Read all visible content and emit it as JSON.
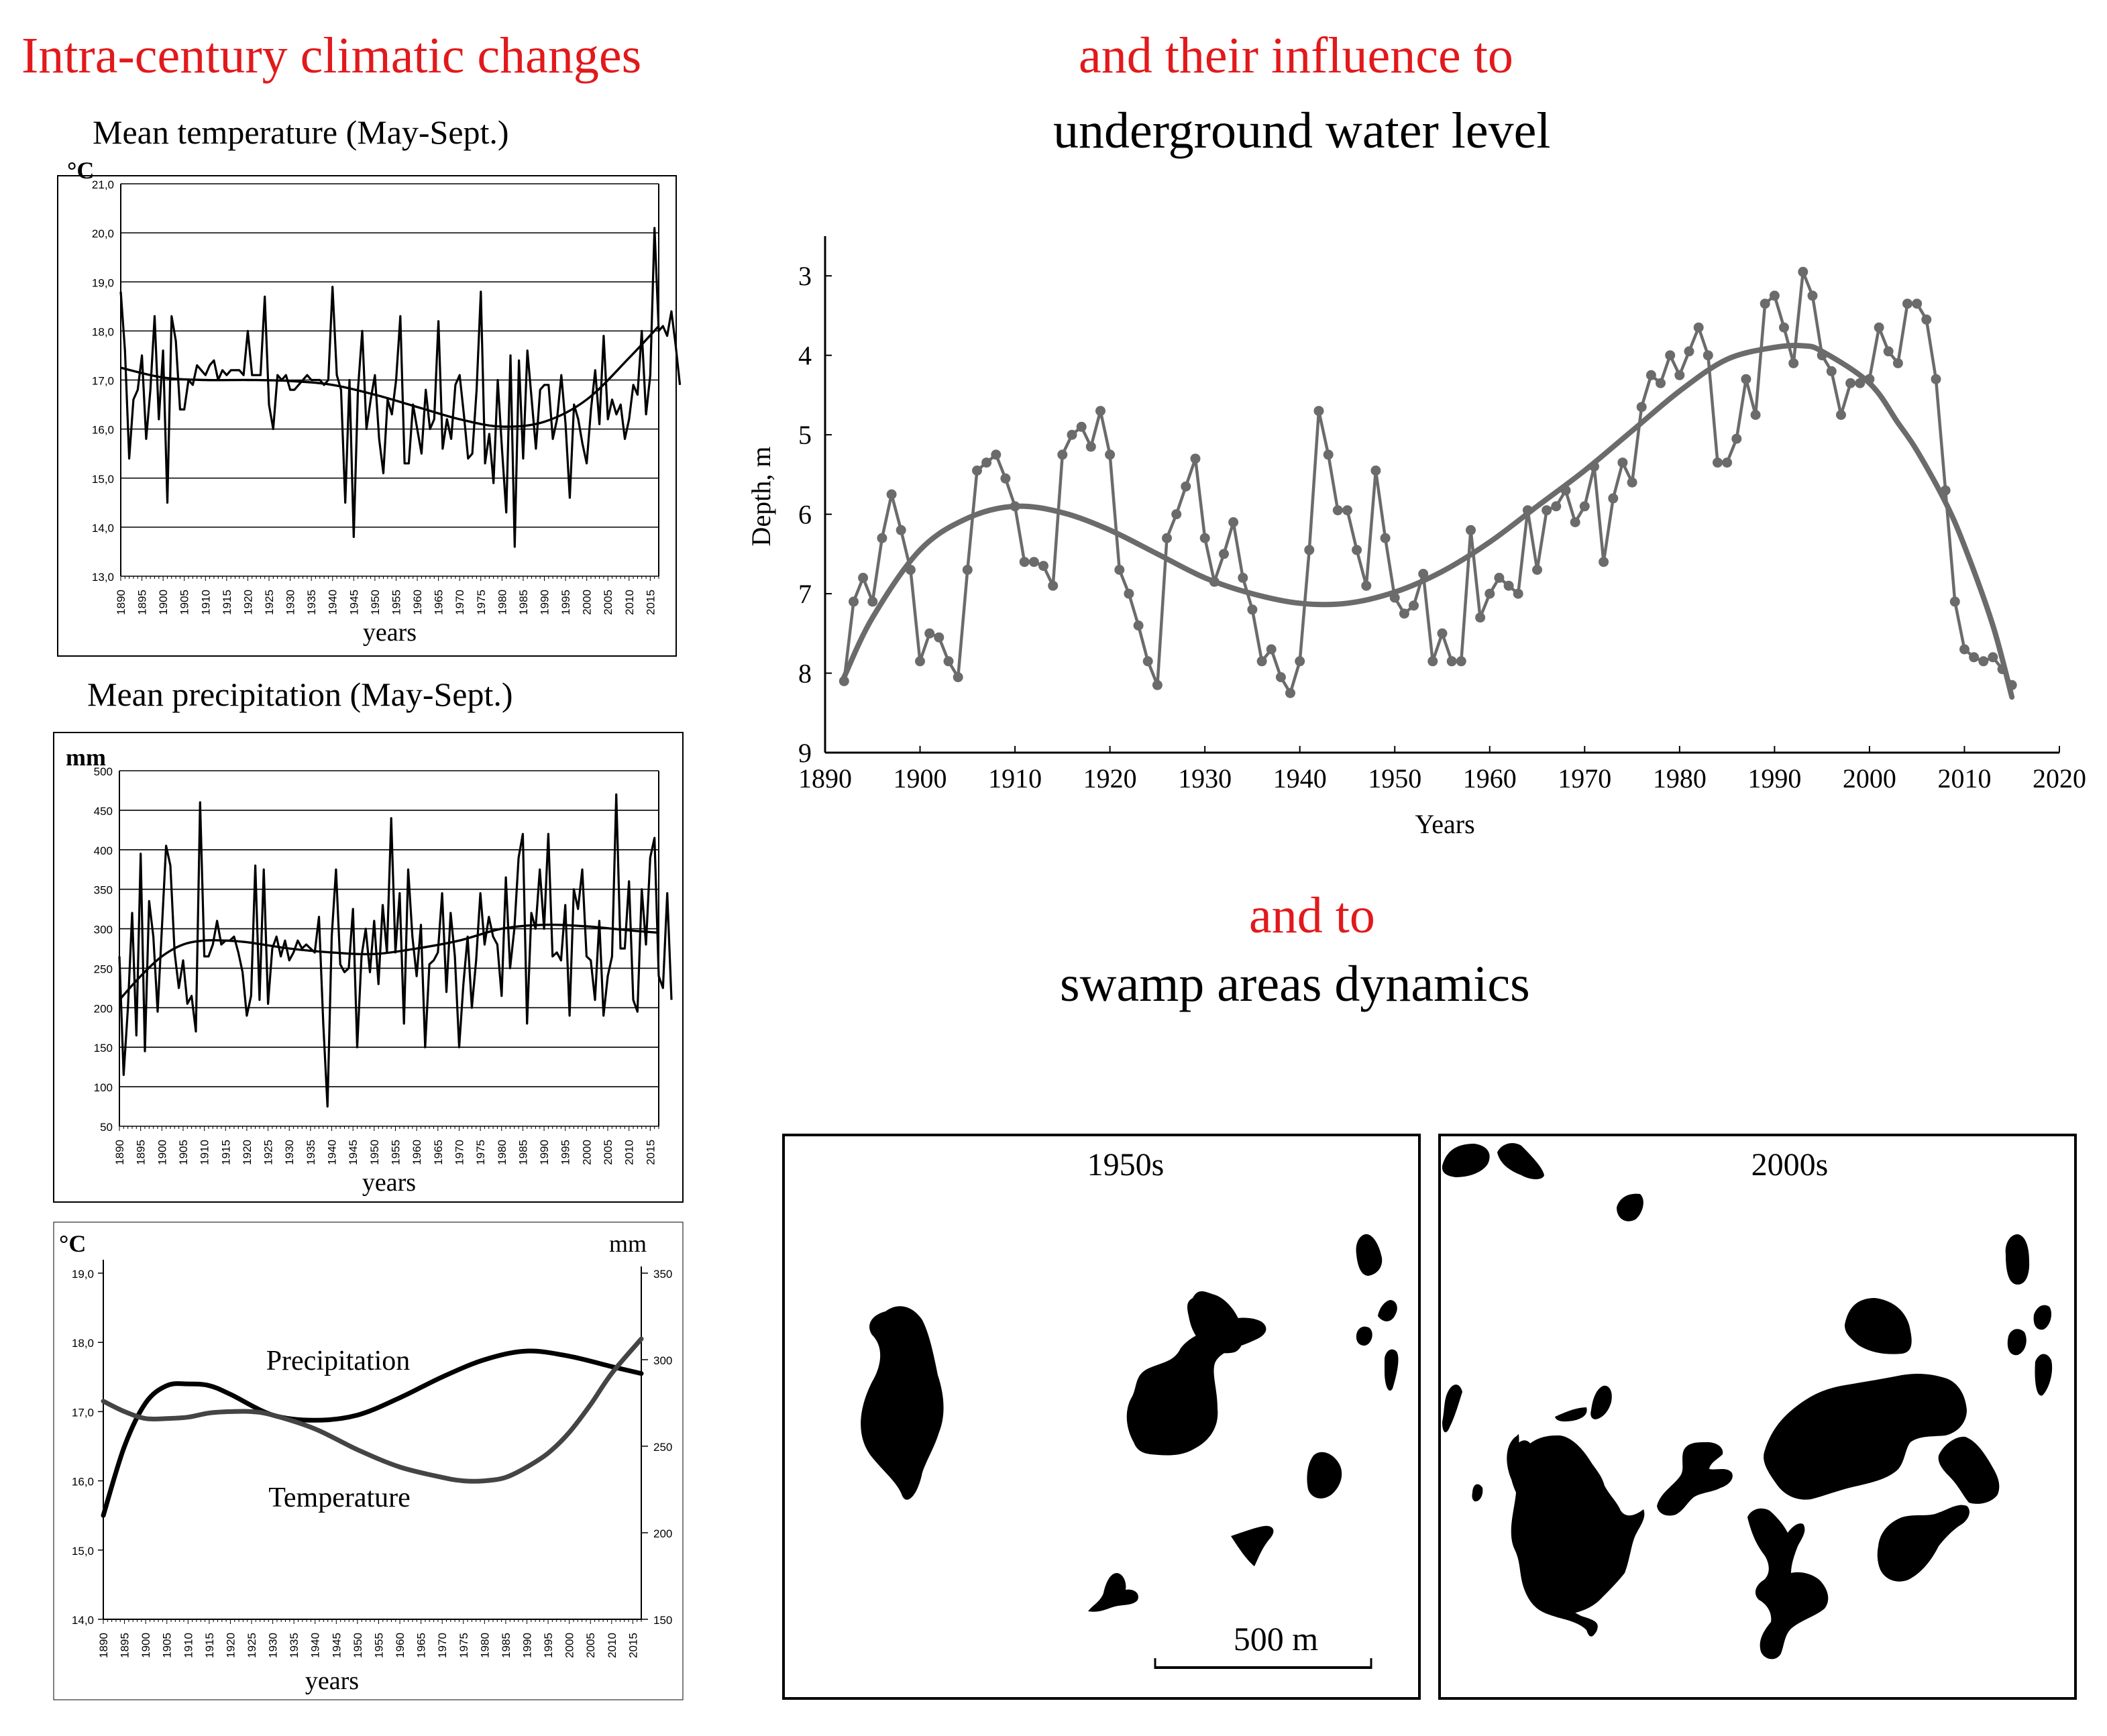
{
  "titles": {
    "left_red": "Intra-century climatic changes",
    "mid_red": "and their influence to",
    "mid_black": "underground water level",
    "low_red": "and to",
    "low_black": "swamp areas dynamics"
  },
  "subtitles": {
    "temp": "Mean temperature (May-Sept.)",
    "precip": "Mean precipitation (May-Sept.)"
  },
  "colors": {
    "title_red": "#e2191b",
    "grey_series": "#6b6b6b",
    "black": "#000000"
  },
  "chart_data": [
    {
      "id": "temperature",
      "type": "line",
      "title": "Mean temperature (May-Sept.)",
      "unit_label": "°C",
      "xlabel": "years",
      "ylim": [
        13.0,
        21.0
      ],
      "yticks": [
        "13,0",
        "14,0",
        "15,0",
        "16,0",
        "17,0",
        "18,0",
        "19,0",
        "20,0",
        "21,0"
      ],
      "xlim": [
        1890,
        2017
      ],
      "xticks": [
        "1890",
        "1895",
        "1900",
        "1905",
        "1910",
        "1915",
        "1920",
        "1925",
        "1930",
        "1935",
        "1940",
        "1945",
        "1950",
        "1955",
        "1960",
        "1965",
        "1970",
        "1975",
        "1980",
        "1985",
        "1990",
        "1995",
        "2000",
        "2005",
        "2010",
        "2015"
      ],
      "series": [
        {
          "name": "annual",
          "x_start": 1890,
          "values": [
            18.8,
            17.6,
            15.4,
            16.6,
            16.8,
            17.5,
            15.8,
            16.8,
            18.3,
            16.2,
            17.6,
            14.5,
            18.3,
            17.8,
            16.4,
            16.4,
            17.0,
            16.9,
            17.3,
            17.2,
            17.1,
            17.3,
            17.4,
            17.0,
            17.2,
            17.1,
            17.2,
            17.2,
            17.2,
            17.1,
            18.0,
            17.1,
            17.1,
            17.1,
            18.7,
            16.5,
            16.0,
            17.1,
            17.0,
            17.1,
            16.8,
            16.8,
            16.9,
            17.0,
            17.1,
            17.0,
            17.0,
            17.0,
            16.9,
            17.0,
            18.9,
            17.1,
            16.8,
            14.5,
            17.0,
            13.8,
            16.8,
            18.0,
            16.0,
            16.6,
            17.1,
            15.8,
            15.1,
            16.6,
            16.3,
            17.0,
            18.3,
            15.3,
            15.3,
            16.5,
            16.0,
            15.5,
            16.8,
            16.0,
            16.2,
            18.2,
            15.6,
            16.2,
            15.8,
            16.9,
            17.1,
            16.3,
            15.4,
            15.5,
            16.8,
            18.8,
            15.3,
            15.9,
            14.9,
            17.0,
            15.6,
            14.3,
            17.5,
            13.6,
            17.4,
            15.4,
            17.6,
            16.6,
            15.6,
            16.8,
            16.9,
            16.9,
            15.8,
            16.2,
            17.1,
            16.1,
            14.6,
            16.5,
            16.2,
            15.7,
            15.3,
            16.4,
            17.2,
            16.1,
            17.9,
            16.2,
            16.6,
            16.3,
            16.5,
            15.8,
            16.2,
            16.9,
            16.7,
            18.0,
            16.3,
            17.1,
            20.1,
            18.0,
            18.1,
            17.9,
            18.4,
            17.7,
            16.9
          ]
        },
        {
          "name": "trend",
          "x": [
            1890,
            1900,
            1910,
            1920,
            1930,
            1940,
            1950,
            1960,
            1970,
            1980,
            1990,
            2000,
            2010,
            2017
          ],
          "values": [
            17.25,
            17.05,
            17.0,
            17.0,
            16.98,
            16.9,
            16.7,
            16.45,
            16.2,
            16.05,
            16.15,
            16.6,
            17.45,
            18.1
          ]
        }
      ]
    },
    {
      "id": "precipitation",
      "type": "line",
      "title": "Mean precipitation (May-Sept.)",
      "unit_label": "mm",
      "xlabel": "years",
      "ylim": [
        50,
        500
      ],
      "yticks": [
        "50",
        "100",
        "150",
        "200",
        "250",
        "300",
        "350",
        "400",
        "450",
        "500"
      ],
      "xlim": [
        1890,
        2017
      ],
      "xticks": [
        "1890",
        "1895",
        "1900",
        "1905",
        "1910",
        "1915",
        "1920",
        "1925",
        "1930",
        "1935",
        "1940",
        "1945",
        "1950",
        "1955",
        "1960",
        "1965",
        "1970",
        "1975",
        "1980",
        "1985",
        "1990",
        "1995",
        "2000",
        "2005",
        "2010",
        "2015"
      ],
      "series": [
        {
          "name": "annual",
          "x_start": 1890,
          "values": [
            265,
            115,
            200,
            320,
            165,
            395,
            145,
            335,
            290,
            195,
            300,
            405,
            380,
            270,
            225,
            260,
            205,
            215,
            170,
            460,
            265,
            265,
            280,
            310,
            280,
            285,
            285,
            290,
            270,
            245,
            190,
            215,
            380,
            210,
            375,
            205,
            275,
            290,
            265,
            285,
            260,
            270,
            285,
            275,
            280,
            275,
            270,
            315,
            180,
            75,
            290,
            375,
            255,
            245,
            250,
            325,
            150,
            265,
            300,
            245,
            310,
            230,
            330,
            270,
            440,
            270,
            345,
            180,
            375,
            290,
            240,
            305,
            150,
            255,
            260,
            270,
            345,
            220,
            320,
            265,
            150,
            230,
            290,
            200,
            260,
            345,
            280,
            315,
            290,
            280,
            215,
            365,
            250,
            300,
            390,
            420,
            180,
            320,
            300,
            375,
            300,
            420,
            265,
            270,
            260,
            330,
            190,
            350,
            325,
            375,
            265,
            260,
            210,
            310,
            190,
            240,
            265,
            470,
            275,
            275,
            360,
            210,
            195,
            350,
            280,
            390,
            415,
            240,
            225,
            345,
            210
          ]
        },
        {
          "name": "trend",
          "x": [
            1890,
            1895,
            1900,
            1905,
            1910,
            1915,
            1920,
            1930,
            1940,
            1950,
            1960,
            1970,
            1980,
            1990,
            2000,
            2010,
            2017
          ],
          "values": [
            210,
            240,
            265,
            280,
            285,
            285,
            283,
            275,
            270,
            268,
            275,
            285,
            300,
            305,
            303,
            298,
            295
          ]
        }
      ]
    },
    {
      "id": "smoothed",
      "type": "line",
      "unit_label_left": "°C",
      "unit_label_right": "mm",
      "xlabel": "years",
      "ylim_left": [
        14.0,
        19.0
      ],
      "yticks_left": [
        "14,0",
        "15,0",
        "16,0",
        "17,0",
        "18,0",
        "19,0"
      ],
      "ylim_right": [
        150,
        350
      ],
      "yticks_right": [
        "150",
        "200",
        "250",
        "300",
        "350"
      ],
      "xlim": [
        1890,
        2017
      ],
      "xticks": [
        "1890",
        "1895",
        "1900",
        "1905",
        "1910",
        "1915",
        "1920",
        "1925",
        "1930",
        "1935",
        "1940",
        "1945",
        "1950",
        "1955",
        "1960",
        "1965",
        "1970",
        "1975",
        "1980",
        "1985",
        "1990",
        "1995",
        "2000",
        "2005",
        "2010",
        "2015"
      ],
      "annotations": [
        "Precipitation",
        "Temperature"
      ],
      "series": [
        {
          "name": "Precipitation",
          "axis": "right",
          "x": [
            1890,
            1895,
            1900,
            1905,
            1910,
            1915,
            1920,
            1930,
            1940,
            1950,
            1960,
            1970,
            1980,
            1990,
            2000,
            2010,
            2017
          ],
          "values": [
            210,
            250,
            275,
            285,
            286,
            285,
            280,
            268,
            265,
            268,
            278,
            290,
            300,
            305,
            302,
            296,
            292
          ]
        },
        {
          "name": "Temperature",
          "axis": "left",
          "x": [
            1890,
            1895,
            1900,
            1905,
            1910,
            1915,
            1920,
            1925,
            1930,
            1940,
            1950,
            1960,
            1970,
            1975,
            1980,
            1985,
            1990,
            1995,
            2000,
            2005,
            2010,
            2017
          ],
          "values": [
            17.15,
            17.0,
            16.9,
            16.9,
            16.92,
            16.98,
            17.0,
            17.0,
            16.95,
            16.75,
            16.45,
            16.2,
            16.05,
            16.0,
            16.0,
            16.05,
            16.2,
            16.4,
            16.7,
            17.1,
            17.55,
            18.05
          ]
        }
      ]
    },
    {
      "id": "groundwater",
      "type": "line",
      "ylabel": "Depth, m",
      "xlabel": "Years",
      "ylim": [
        9,
        2.5
      ],
      "y_inverted": true,
      "yticks": [
        "3",
        "4",
        "5",
        "6",
        "7",
        "8",
        "9"
      ],
      "xlim": [
        1890,
        2020
      ],
      "xticks": [
        "1890",
        "1900",
        "1910",
        "1920",
        "1930",
        "1940",
        "1950",
        "1960",
        "1970",
        "1980",
        "1990",
        "2000",
        "2010",
        "2020"
      ],
      "series": [
        {
          "name": "observed",
          "x_start": 1892,
          "values": [
            8.1,
            7.1,
            6.8,
            7.1,
            6.3,
            5.75,
            6.2,
            6.7,
            7.85,
            7.5,
            7.55,
            7.85,
            8.05,
            6.7,
            5.45,
            5.35,
            5.25,
            5.55,
            5.9,
            6.6,
            6.6,
            6.65,
            6.9,
            5.25,
            5.0,
            4.9,
            5.15,
            4.7,
            5.25,
            6.7,
            7.0,
            7.4,
            7.85,
            8.15,
            6.3,
            6.0,
            5.65,
            5.3,
            6.3,
            6.85,
            6.5,
            6.1,
            6.8,
            7.2,
            7.85,
            7.7,
            8.05,
            8.25,
            7.85,
            6.45,
            4.7,
            5.25,
            5.95,
            5.95,
            6.45,
            6.9,
            5.45,
            6.3,
            7.05,
            7.25,
            7.15,
            6.75,
            7.85,
            7.5,
            7.85,
            7.85,
            6.2,
            7.3,
            7.0,
            6.8,
            6.9,
            7.0,
            5.95,
            6.7,
            5.95,
            5.9,
            5.7,
            6.1,
            5.9,
            5.4,
            6.6,
            5.8,
            5.35,
            5.6,
            4.65,
            4.25,
            4.35,
            4.0,
            4.25,
            3.95,
            3.65,
            4.0,
            5.35,
            5.35,
            5.05,
            4.3,
            4.75,
            3.35,
            3.25,
            3.65,
            4.1,
            2.95,
            3.25,
            4.0,
            4.2,
            4.75,
            4.35,
            4.35,
            4.3,
            3.65,
            3.95,
            4.1,
            3.35,
            3.35,
            3.55,
            4.3,
            5.7,
            7.1,
            7.7,
            7.8,
            7.85,
            7.8,
            7.95,
            8.15
          ]
        },
        {
          "name": "trend",
          "x": [
            1892,
            1895,
            1900,
            1905,
            1910,
            1915,
            1920,
            1925,
            1930,
            1935,
            1940,
            1945,
            1950,
            1955,
            1960,
            1965,
            1970,
            1975,
            1980,
            1985,
            1990,
            1993,
            1995,
            2000,
            2003,
            2005,
            2008,
            2010,
            2013,
            2015
          ],
          "values": [
            8.05,
            7.3,
            6.45,
            6.05,
            5.9,
            5.98,
            6.2,
            6.5,
            6.8,
            7.0,
            7.12,
            7.12,
            6.98,
            6.72,
            6.35,
            5.9,
            5.45,
            4.95,
            4.45,
            4.05,
            3.9,
            3.88,
            3.95,
            4.35,
            4.85,
            5.2,
            5.85,
            6.4,
            7.4,
            8.3
          ]
        }
      ]
    }
  ],
  "maps": {
    "left_label": "1950s",
    "right_label": "2000s",
    "scale_label": "500 m"
  }
}
